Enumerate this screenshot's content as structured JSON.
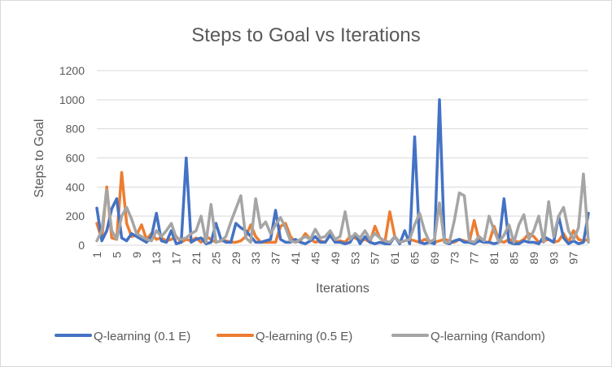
{
  "chart_data": {
    "type": "line",
    "title": "Steps to Goal vs Iterations",
    "xlabel": "Iterations",
    "ylabel": "Steps to Goal",
    "ylim": [
      0,
      1200
    ],
    "yticks": [
      0,
      200,
      400,
      600,
      800,
      1000,
      1200
    ],
    "grid": "horizontal",
    "legend_position": "bottom",
    "x": [
      1,
      2,
      3,
      4,
      5,
      6,
      7,
      8,
      9,
      10,
      11,
      12,
      13,
      14,
      15,
      16,
      17,
      18,
      19,
      20,
      21,
      22,
      23,
      24,
      25,
      26,
      27,
      28,
      29,
      30,
      31,
      32,
      33,
      34,
      35,
      36,
      37,
      38,
      39,
      40,
      41,
      42,
      43,
      44,
      45,
      46,
      47,
      48,
      49,
      50,
      51,
      52,
      53,
      54,
      55,
      56,
      57,
      58,
      59,
      60,
      61,
      62,
      63,
      64,
      65,
      66,
      67,
      68,
      69,
      70,
      71,
      72,
      73,
      74,
      75,
      76,
      77,
      78,
      79,
      80,
      81,
      82,
      83,
      84,
      85,
      86,
      87,
      88,
      89,
      90,
      91,
      92,
      93,
      94,
      95,
      96,
      97,
      98,
      99,
      100
    ],
    "xticklabels": [
      "1",
      "5",
      "9",
      "13",
      "17",
      "21",
      "25",
      "29",
      "33",
      "37",
      "41",
      "45",
      "49",
      "53",
      "57",
      "61",
      "65",
      "69",
      "73",
      "77",
      "81",
      "85",
      "89",
      "93",
      "97"
    ],
    "series": [
      {
        "name": "Q-learning (0.1 E)",
        "color": "#4472c4",
        "values": [
          255,
          30,
          100,
          250,
          320,
          50,
          30,
          80,
          60,
          40,
          20,
          60,
          220,
          30,
          20,
          100,
          10,
          20,
          600,
          20,
          40,
          50,
          10,
          20,
          150,
          40,
          20,
          20,
          150,
          120,
          100,
          60,
          20,
          20,
          30,
          40,
          240,
          40,
          20,
          20,
          40,
          20,
          10,
          30,
          60,
          20,
          20,
          70,
          20,
          20,
          10,
          20,
          80,
          10,
          60,
          20,
          10,
          20,
          10,
          10,
          60,
          10,
          100,
          10,
          745,
          20,
          10,
          20,
          10,
          1000,
          20,
          10,
          30,
          40,
          20,
          20,
          10,
          30,
          20,
          20,
          10,
          20,
          320,
          20,
          10,
          10,
          30,
          20,
          20,
          10,
          60,
          40,
          20,
          200,
          50,
          10,
          30,
          10,
          20,
          220
        ]
      },
      {
        "name": "Q-learning (0.5 E)",
        "color": "#ed7d31",
        "values": [
          150,
          40,
          400,
          50,
          40,
          500,
          150,
          60,
          70,
          140,
          40,
          80,
          40,
          50,
          30,
          40,
          60,
          20,
          40,
          30,
          50,
          20,
          60,
          40,
          20,
          30,
          30,
          20,
          20,
          30,
          60,
          140,
          60,
          20,
          20,
          20,
          20,
          130,
          150,
          60,
          20,
          30,
          80,
          40,
          20,
          30,
          20,
          70,
          20,
          30,
          20,
          60,
          50,
          30,
          40,
          20,
          130,
          50,
          20,
          230,
          60,
          20,
          30,
          40,
          30,
          20,
          40,
          30,
          20,
          30,
          40,
          30,
          20,
          40,
          30,
          20,
          170,
          30,
          20,
          20,
          130,
          30,
          20,
          40,
          30,
          20,
          40,
          80,
          60,
          20,
          30,
          40,
          20,
          30,
          80,
          20,
          100,
          40,
          30,
          40
        ]
      },
      {
        "name": "Q-learning (Random)",
        "color": "#a5a5a5",
        "values": [
          30,
          100,
          380,
          100,
          40,
          200,
          260,
          180,
          80,
          60,
          40,
          30,
          100,
          60,
          100,
          150,
          50,
          40,
          50,
          80,
          100,
          200,
          20,
          280,
          20,
          30,
          60,
          160,
          250,
          340,
          50,
          20,
          320,
          120,
          160,
          80,
          140,
          190,
          120,
          30,
          20,
          40,
          60,
          40,
          110,
          50,
          60,
          100,
          40,
          60,
          230,
          40,
          80,
          50,
          100,
          40,
          80,
          50,
          30,
          20,
          60,
          20,
          30,
          40,
          140,
          220,
          100,
          20,
          40,
          290,
          20,
          20,
          170,
          360,
          340,
          30,
          20,
          60,
          30,
          200,
          100,
          20,
          70,
          140,
          20,
          140,
          210,
          40,
          100,
          200,
          20,
          300,
          60,
          200,
          260,
          100,
          40,
          120,
          490,
          20
        ]
      }
    ]
  }
}
